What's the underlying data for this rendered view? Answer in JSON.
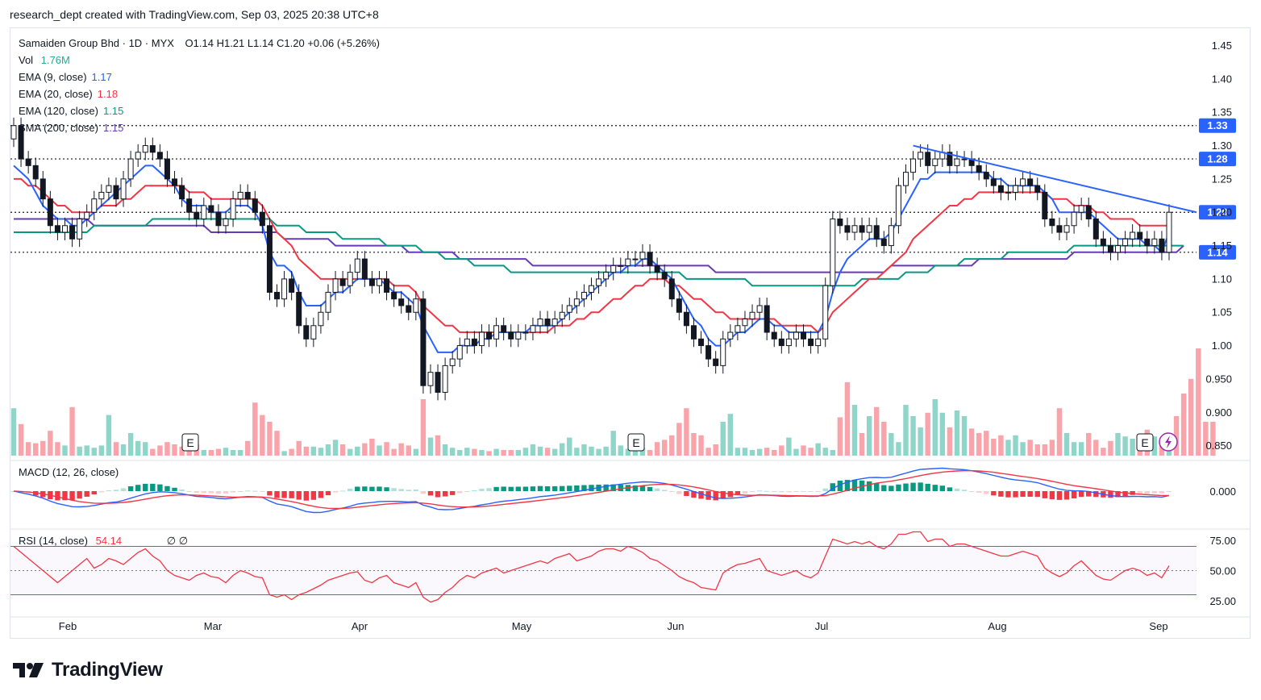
{
  "caption": "research_dept created with TradingView.com, Sep 03, 2025 20:38 UTC+8",
  "header": {
    "symbol": "Samaiden Group Bhd · 1D · MYX",
    "ohlc": "O1.14  H1.21  L1.14  C1.20  +0.06 (+5.26%)",
    "vol_label": "Vol",
    "vol_value": "1.76M"
  },
  "indicators": [
    {
      "label": "EMA (9, close)",
      "value": "1.17",
      "color": "#2962ff"
    },
    {
      "label": "EMA (20, close)",
      "value": "1.18",
      "color": "#f23645"
    },
    {
      "label": "EMA (120, close)",
      "value": "1.15",
      "color": "#089981"
    },
    {
      "label": "SMA (200, close)",
      "value": "1.15",
      "color": "#673ab7"
    }
  ],
  "macd": {
    "label": "MACD (12, 26, close)"
  },
  "rsi": {
    "label": "RSI (14, close)",
    "value": "54.14",
    "extra": "∅  ∅"
  },
  "brand": "TradingView",
  "earnings_marker": "E",
  "chart_data": {
    "type": "candlestick",
    "x_axis": {
      "ticks": [
        "Feb",
        "Mar",
        "Apr",
        "May",
        "Jun",
        "Jul",
        "Aug",
        "Sep"
      ]
    },
    "price_axis": {
      "ticks": [
        1.45,
        1.4,
        1.35,
        1.3,
        1.25,
        1.2,
        1.15,
        1.1,
        1.05,
        1.0,
        0.95,
        0.9,
        0.85
      ],
      "tick_labels": [
        "1.45",
        "1.40",
        "1.35",
        "1.30",
        "1.25",
        "1.20",
        "1.15",
        "1.10",
        "1.05",
        "1.00",
        "0.950",
        "0.900",
        "0.850"
      ],
      "range": [
        0.835,
        1.47
      ]
    },
    "levels": [
      {
        "value": 1.33,
        "label": "1.33"
      },
      {
        "value": 1.28,
        "label": "1.28"
      },
      {
        "value": 1.2,
        "label": "1.20"
      },
      {
        "value": 1.14,
        "label": "1.14"
      }
    ],
    "trendline": {
      "from": [
        "2025-07-14",
        1.3
      ],
      "to": [
        "2025-09-05",
        1.2
      ]
    },
    "closes": [
      1.33,
      1.28,
      1.27,
      1.25,
      1.22,
      1.18,
      1.17,
      1.18,
      1.16,
      1.19,
      1.2,
      1.22,
      1.23,
      1.24,
      1.22,
      1.25,
      1.28,
      1.29,
      1.3,
      1.29,
      1.28,
      1.25,
      1.24,
      1.22,
      1.2,
      1.19,
      1.21,
      1.2,
      1.18,
      1.19,
      1.22,
      1.23,
      1.22,
      1.2,
      1.18,
      1.08,
      1.07,
      1.1,
      1.08,
      1.03,
      1.01,
      1.03,
      1.05,
      1.08,
      1.1,
      1.09,
      1.11,
      1.13,
      1.1,
      1.09,
      1.1,
      1.08,
      1.07,
      1.06,
      1.05,
      1.07,
      0.94,
      0.96,
      0.93,
      0.97,
      0.98,
      1.0,
      1.01,
      1.0,
      1.02,
      1.01,
      1.03,
      1.02,
      1.01,
      1.02,
      1.02,
      1.03,
      1.04,
      1.03,
      1.04,
      1.05,
      1.06,
      1.07,
      1.08,
      1.09,
      1.1,
      1.11,
      1.12,
      1.12,
      1.13,
      1.13,
      1.14,
      1.12,
      1.11,
      1.1,
      1.07,
      1.05,
      1.03,
      1.01,
      1.0,
      0.98,
      0.97,
      1.01,
      1.02,
      1.03,
      1.04,
      1.05,
      1.06,
      1.02,
      1.01,
      1.0,
      1.01,
      1.02,
      1.01,
      1.0,
      1.01,
      1.09,
      1.19,
      1.18,
      1.17,
      1.18,
      1.17,
      1.18,
      1.16,
      1.15,
      1.18,
      1.24,
      1.26,
      1.28,
      1.29,
      1.27,
      1.28,
      1.29,
      1.27,
      1.28,
      1.28,
      1.27,
      1.26,
      1.25,
      1.24,
      1.23,
      1.23,
      1.24,
      1.25,
      1.24,
      1.23,
      1.19,
      1.18,
      1.17,
      1.18,
      1.2,
      1.21,
      1.19,
      1.16,
      1.15,
      1.14,
      1.15,
      1.16,
      1.17,
      1.16,
      1.15,
      1.16,
      1.14,
      1.2
    ],
    "volume_max_units": 1.0,
    "volume_series": [
      0.42,
      0.28,
      0.12,
      0.11,
      0.13,
      0.22,
      0.12,
      0.09,
      0.43,
      0.08,
      0.09,
      0.07,
      0.09,
      0.36,
      0.12,
      0.1,
      0.2,
      0.13,
      0.12,
      0.06,
      0.09,
      0.12,
      0.1,
      0.08,
      0.06,
      0.1,
      0.05,
      0.05,
      0.06,
      0.07,
      0.05,
      0.05,
      0.13,
      0.47,
      0.36,
      0.3,
      0.22,
      0.04,
      0.06,
      0.13,
      0.08,
      0.08,
      0.07,
      0.1,
      0.14,
      0.1,
      0.06,
      0.08,
      0.11,
      0.15,
      0.09,
      0.12,
      0.06,
      0.11,
      0.09,
      0.06,
      0.5,
      0.16,
      0.18,
      0.1,
      0.07,
      0.05,
      0.07,
      0.06,
      0.05,
      0.04,
      0.06,
      0.05,
      0.05,
      0.05,
      0.07,
      0.1,
      0.08,
      0.07,
      0.06,
      0.11,
      0.16,
      0.07,
      0.1,
      0.08,
      0.06,
      0.08,
      0.22,
      0.09,
      0.06,
      0.05,
      0.07,
      0.05,
      0.12,
      0.14,
      0.18,
      0.29,
      0.42,
      0.2,
      0.18,
      0.07,
      0.1,
      0.3,
      0.37,
      0.07,
      0.07,
      0.05,
      0.06,
      0.07,
      0.05,
      0.09,
      0.16,
      0.06,
      0.09,
      0.07,
      0.11,
      0.07,
      0.05,
      0.34,
      0.65,
      0.45,
      0.2,
      0.35,
      0.43,
      0.3,
      0.2,
      0.12,
      0.45,
      0.35,
      0.25,
      0.38,
      0.5,
      0.38,
      0.25,
      0.4,
      0.35,
      0.24,
      0.2,
      0.22,
      0.15,
      0.18,
      0.14,
      0.18,
      0.12,
      0.14,
      0.1,
      0.1,
      0.14,
      0.42,
      0.2,
      0.12,
      0.12,
      0.2,
      0.14,
      0.07,
      0.13,
      0.2,
      0.17,
      0.15,
      0.1,
      0.23,
      0.17,
      0.16,
      0.1,
      0.35,
      0.55,
      0.68,
      0.95,
      0.3,
      0.3
    ],
    "ema9": [
      1.27,
      1.26,
      1.25,
      1.23,
      1.21,
      1.2,
      1.19,
      1.19,
      1.18,
      1.18,
      1.19,
      1.2,
      1.21,
      1.22,
      1.23,
      1.24,
      1.25,
      1.26,
      1.27,
      1.27,
      1.26,
      1.25,
      1.24,
      1.22,
      1.21,
      1.21,
      1.21,
      1.2,
      1.2,
      1.2,
      1.21,
      1.21,
      1.21,
      1.2,
      1.18,
      1.14,
      1.12,
      1.12,
      1.11,
      1.08,
      1.06,
      1.06,
      1.06,
      1.07,
      1.08,
      1.08,
      1.09,
      1.1,
      1.1,
      1.1,
      1.1,
      1.09,
      1.08,
      1.08,
      1.07,
      1.06,
      1.03,
      1.01,
      0.99,
      0.99,
      0.99,
      1.0,
      1.0,
      1.0,
      1.01,
      1.01,
      1.02,
      1.02,
      1.02,
      1.02,
      1.02,
      1.03,
      1.03,
      1.03,
      1.03,
      1.04,
      1.05,
      1.06,
      1.07,
      1.08,
      1.09,
      1.1,
      1.11,
      1.11,
      1.12,
      1.12,
      1.13,
      1.13,
      1.12,
      1.11,
      1.1,
      1.08,
      1.06,
      1.04,
      1.03,
      1.01,
      1.0,
      1.0,
      1.01,
      1.02,
      1.02,
      1.03,
      1.04,
      1.04,
      1.03,
      1.03,
      1.02,
      1.02,
      1.02,
      1.02,
      1.02,
      1.04,
      1.08,
      1.11,
      1.13,
      1.14,
      1.15,
      1.16,
      1.16,
      1.16,
      1.17,
      1.19,
      1.21,
      1.23,
      1.25,
      1.25,
      1.26,
      1.26,
      1.26,
      1.26,
      1.26,
      1.26,
      1.26,
      1.26,
      1.25,
      1.25,
      1.24,
      1.24,
      1.24,
      1.24,
      1.24,
      1.23,
      1.22,
      1.2,
      1.2,
      1.2,
      1.2,
      1.2,
      1.19,
      1.18,
      1.17,
      1.16,
      1.16,
      1.16,
      1.16,
      1.15,
      1.15,
      1.14,
      1.17
    ],
    "ema20": [
      1.25,
      1.25,
      1.24,
      1.24,
      1.23,
      1.22,
      1.21,
      1.21,
      1.2,
      1.2,
      1.2,
      1.2,
      1.21,
      1.21,
      1.21,
      1.22,
      1.22,
      1.23,
      1.24,
      1.24,
      1.24,
      1.24,
      1.24,
      1.24,
      1.23,
      1.23,
      1.23,
      1.22,
      1.22,
      1.22,
      1.22,
      1.22,
      1.22,
      1.22,
      1.21,
      1.19,
      1.17,
      1.16,
      1.15,
      1.13,
      1.12,
      1.11,
      1.1,
      1.1,
      1.1,
      1.1,
      1.1,
      1.1,
      1.1,
      1.1,
      1.1,
      1.1,
      1.09,
      1.09,
      1.09,
      1.08,
      1.06,
      1.05,
      1.04,
      1.03,
      1.03,
      1.02,
      1.02,
      1.02,
      1.02,
      1.02,
      1.02,
      1.02,
      1.02,
      1.02,
      1.02,
      1.02,
      1.02,
      1.02,
      1.03,
      1.03,
      1.03,
      1.04,
      1.04,
      1.05,
      1.05,
      1.06,
      1.07,
      1.07,
      1.08,
      1.09,
      1.09,
      1.1,
      1.1,
      1.1,
      1.09,
      1.09,
      1.08,
      1.07,
      1.07,
      1.06,
      1.05,
      1.05,
      1.04,
      1.04,
      1.04,
      1.04,
      1.04,
      1.04,
      1.04,
      1.03,
      1.03,
      1.03,
      1.03,
      1.03,
      1.02,
      1.03,
      1.05,
      1.06,
      1.07,
      1.08,
      1.09,
      1.1,
      1.1,
      1.11,
      1.12,
      1.13,
      1.14,
      1.16,
      1.17,
      1.18,
      1.19,
      1.2,
      1.21,
      1.21,
      1.22,
      1.22,
      1.23,
      1.23,
      1.23,
      1.23,
      1.23,
      1.23,
      1.23,
      1.23,
      1.23,
      1.23,
      1.22,
      1.22,
      1.22,
      1.21,
      1.21,
      1.21,
      1.2,
      1.2,
      1.19,
      1.19,
      1.19,
      1.19,
      1.18,
      1.18,
      1.18,
      1.18,
      1.18
    ],
    "ema120": [
      1.17,
      1.17,
      1.17,
      1.17,
      1.17,
      1.17,
      1.17,
      1.17,
      1.17,
      1.17,
      1.17,
      1.18,
      1.18,
      1.18,
      1.18,
      1.18,
      1.18,
      1.18,
      1.18,
      1.19,
      1.19,
      1.19,
      1.19,
      1.19,
      1.19,
      1.19,
      1.19,
      1.19,
      1.19,
      1.19,
      1.19,
      1.19,
      1.19,
      1.19,
      1.19,
      1.19,
      1.18,
      1.18,
      1.18,
      1.18,
      1.17,
      1.17,
      1.17,
      1.17,
      1.17,
      1.16,
      1.16,
      1.16,
      1.16,
      1.16,
      1.16,
      1.15,
      1.15,
      1.15,
      1.15,
      1.15,
      1.14,
      1.14,
      1.14,
      1.13,
      1.13,
      1.13,
      1.13,
      1.12,
      1.12,
      1.12,
      1.12,
      1.12,
      1.11,
      1.11,
      1.11,
      1.11,
      1.11,
      1.11,
      1.11,
      1.11,
      1.11,
      1.11,
      1.11,
      1.11,
      1.11,
      1.11,
      1.11,
      1.11,
      1.11,
      1.11,
      1.11,
      1.11,
      1.11,
      1.11,
      1.11,
      1.11,
      1.1,
      1.1,
      1.1,
      1.1,
      1.1,
      1.1,
      1.1,
      1.1,
      1.1,
      1.09,
      1.09,
      1.09,
      1.09,
      1.09,
      1.09,
      1.09,
      1.09,
      1.09,
      1.09,
      1.09,
      1.09,
      1.09,
      1.09,
      1.09,
      1.1,
      1.1,
      1.1,
      1.1,
      1.1,
      1.1,
      1.11,
      1.11,
      1.11,
      1.11,
      1.12,
      1.12,
      1.12,
      1.12,
      1.13,
      1.13,
      1.13,
      1.13,
      1.13,
      1.13,
      1.14,
      1.14,
      1.14,
      1.14,
      1.14,
      1.14,
      1.14,
      1.14,
      1.14,
      1.15,
      1.15,
      1.15,
      1.15,
      1.15,
      1.15,
      1.15,
      1.15,
      1.15,
      1.15,
      1.15,
      1.15,
      1.15,
      1.15,
      1.15,
      1.15
    ],
    "sma200": [
      1.19,
      1.19,
      1.19,
      1.19,
      1.19,
      1.19,
      1.19,
      1.19,
      1.19,
      1.19,
      1.19,
      1.18,
      1.18,
      1.18,
      1.18,
      1.18,
      1.18,
      1.18,
      1.18,
      1.18,
      1.18,
      1.18,
      1.18,
      1.18,
      1.18,
      1.18,
      1.18,
      1.17,
      1.17,
      1.17,
      1.17,
      1.17,
      1.17,
      1.17,
      1.17,
      1.17,
      1.17,
      1.16,
      1.16,
      1.16,
      1.16,
      1.16,
      1.16,
      1.16,
      1.15,
      1.15,
      1.15,
      1.15,
      1.15,
      1.15,
      1.15,
      1.15,
      1.15,
      1.15,
      1.14,
      1.14,
      1.14,
      1.14,
      1.14,
      1.14,
      1.14,
      1.13,
      1.13,
      1.13,
      1.13,
      1.13,
      1.13,
      1.13,
      1.13,
      1.13,
      1.13,
      1.12,
      1.12,
      1.12,
      1.12,
      1.12,
      1.12,
      1.12,
      1.12,
      1.12,
      1.12,
      1.12,
      1.12,
      1.12,
      1.12,
      1.12,
      1.12,
      1.12,
      1.12,
      1.12,
      1.12,
      1.12,
      1.12,
      1.12,
      1.12,
      1.12,
      1.11,
      1.11,
      1.11,
      1.11,
      1.11,
      1.11,
      1.11,
      1.11,
      1.11,
      1.11,
      1.11,
      1.11,
      1.11,
      1.11,
      1.11,
      1.11,
      1.11,
      1.11,
      1.11,
      1.11,
      1.11,
      1.11,
      1.11,
      1.11,
      1.12,
      1.12,
      1.12,
      1.12,
      1.12,
      1.12,
      1.12,
      1.12,
      1.12,
      1.12,
      1.12,
      1.12,
      1.13,
      1.13,
      1.13,
      1.13,
      1.13,
      1.13,
      1.13,
      1.13,
      1.13,
      1.13,
      1.13,
      1.13,
      1.13,
      1.14,
      1.14,
      1.14,
      1.14,
      1.14,
      1.14,
      1.14,
      1.14,
      1.14,
      1.14,
      1.14,
      1.14,
      1.14,
      1.14,
      1.14,
      1.15
    ],
    "macd_axis": {
      "ticks": [
        "0.000"
      ]
    },
    "rsi_axis": {
      "ticks": [
        "75.00",
        "50.00",
        "25.00"
      ],
      "bands": [
        70,
        30
      ]
    },
    "rsi_series": [
      70,
      65,
      60,
      55,
      50,
      45,
      40,
      45,
      50,
      55,
      60,
      52,
      55,
      60,
      58,
      55,
      60,
      65,
      68,
      62,
      58,
      50,
      46,
      44,
      42,
      46,
      48,
      45,
      44,
      40,
      46,
      50,
      48,
      45,
      44,
      30,
      28,
      30,
      26,
      30,
      32,
      35,
      38,
      42,
      44,
      46,
      48,
      49,
      42,
      40,
      44,
      46,
      40,
      38,
      36,
      40,
      28,
      24,
      26,
      32,
      36,
      42,
      46,
      44,
      48,
      50,
      52,
      48,
      50,
      52,
      54,
      56,
      58,
      56,
      60,
      62,
      64,
      58,
      60,
      62,
      66,
      68,
      68,
      66,
      70,
      68,
      65,
      60,
      58,
      54,
      50,
      45,
      42,
      40,
      36,
      35,
      34,
      48,
      52,
      55,
      56,
      58,
      60,
      50,
      48,
      46,
      48,
      50,
      46,
      44,
      48,
      62,
      76,
      74,
      72,
      74,
      72,
      74,
      70,
      68,
      72,
      80,
      80,
      82,
      82,
      74,
      76,
      76,
      70,
      72,
      72,
      70,
      68,
      66,
      64,
      62,
      62,
      64,
      66,
      64,
      62,
      52,
      48,
      45,
      48,
      54,
      58,
      52,
      46,
      43,
      42,
      46,
      50,
      52,
      50,
      46,
      48,
      44,
      54
    ]
  }
}
